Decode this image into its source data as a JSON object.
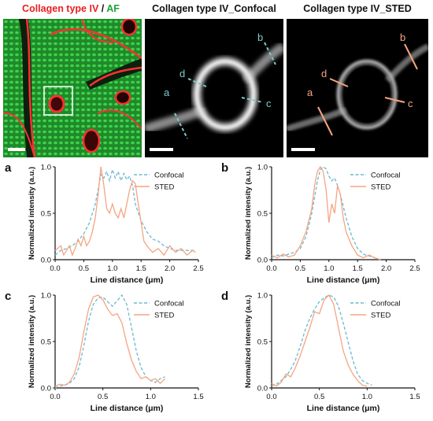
{
  "images": {
    "left_title": {
      "part1": "Collagen type IV",
      "sep": " / ",
      "part2": "AF"
    },
    "confocal_title": "Collagen type IV_Confocal",
    "sted_title": "Collagen type IV_STED",
    "colors": {
      "red": "#ff3030",
      "green": "#22c43a",
      "confocal_line": "#7ec9c9",
      "sted_line": "#f4a582"
    },
    "line_labels": [
      "a",
      "b",
      "c",
      "d"
    ]
  },
  "legend": {
    "confocal": "Confocal",
    "sted": "STED"
  },
  "chart_data": [
    {
      "panel": "a",
      "type": "line",
      "xlabel": "Line distance (μm)",
      "ylabel": "Normalized intensity (a.u.)",
      "xlim": [
        0,
        2.5
      ],
      "ylim": [
        0,
        1.0
      ],
      "xticks": [
        "0.0",
        "0.5",
        "1.0",
        "1.5",
        "2.0",
        "2.5"
      ],
      "yticks": [
        "0.0",
        "0.5",
        "1.0"
      ],
      "series": [
        {
          "name": "Confocal",
          "style": "dashed",
          "color": "#6cb8d0",
          "x": [
            0.0,
            0.1,
            0.2,
            0.3,
            0.4,
            0.5,
            0.6,
            0.7,
            0.75,
            0.8,
            0.85,
            0.9,
            0.95,
            1.0,
            1.05,
            1.1,
            1.15,
            1.2,
            1.25,
            1.3,
            1.35,
            1.4,
            1.5,
            1.6,
            1.7,
            1.8,
            1.9,
            2.0,
            2.1,
            2.2,
            2.3,
            2.4,
            2.45
          ],
          "y": [
            0.05,
            0.1,
            0.12,
            0.15,
            0.2,
            0.28,
            0.4,
            0.6,
            0.75,
            0.92,
            0.88,
            0.95,
            0.85,
            0.97,
            0.88,
            0.95,
            0.85,
            0.93,
            0.86,
            0.9,
            0.8,
            0.6,
            0.42,
            0.3,
            0.22,
            0.2,
            0.15,
            0.12,
            0.1,
            0.1,
            0.1,
            0.1,
            0.1
          ]
        },
        {
          "name": "STED",
          "style": "solid",
          "color": "#f4a582",
          "x": [
            0.0,
            0.1,
            0.15,
            0.2,
            0.25,
            0.3,
            0.35,
            0.4,
            0.45,
            0.5,
            0.55,
            0.6,
            0.65,
            0.7,
            0.75,
            0.8,
            0.85,
            0.9,
            0.95,
            1.0,
            1.05,
            1.1,
            1.15,
            1.2,
            1.25,
            1.3,
            1.35,
            1.4,
            1.45,
            1.5,
            1.55,
            1.6,
            1.7,
            1.8,
            1.9,
            2.0,
            2.1,
            2.2,
            2.3,
            2.4,
            2.45
          ],
          "y": [
            0.1,
            0.15,
            0.05,
            0.1,
            0.15,
            0.05,
            0.12,
            0.22,
            0.15,
            0.25,
            0.15,
            0.2,
            0.3,
            0.45,
            0.7,
            1.0,
            0.8,
            0.55,
            0.5,
            0.6,
            0.5,
            0.45,
            0.55,
            0.45,
            0.6,
            0.75,
            0.85,
            0.82,
            0.6,
            0.4,
            0.2,
            0.15,
            0.08,
            0.12,
            0.05,
            0.15,
            0.08,
            0.12,
            0.05,
            0.1,
            0.08
          ]
        }
      ]
    },
    {
      "panel": "b",
      "type": "line",
      "xlabel": "Line distance (μm)",
      "ylabel": "Normalized intensity (a.u.)",
      "xlim": [
        0,
        2.5
      ],
      "ylim": [
        0,
        1.0
      ],
      "xticks": [
        "0.0",
        "0.5",
        "1.0",
        "1.5",
        "2.0",
        "2.5"
      ],
      "yticks": [
        "0.0",
        "0.5",
        "1.0"
      ],
      "series": [
        {
          "name": "Confocal",
          "style": "dashed",
          "color": "#6cb8d0",
          "x": [
            0.0,
            0.1,
            0.2,
            0.3,
            0.4,
            0.5,
            0.6,
            0.7,
            0.8,
            0.85,
            0.9,
            0.95,
            1.0,
            1.05,
            1.1,
            1.15,
            1.2,
            1.3,
            1.4,
            1.5,
            1.6,
            1.7,
            1.8,
            1.9
          ],
          "y": [
            0.02,
            0.05,
            0.04,
            0.06,
            0.08,
            0.12,
            0.25,
            0.5,
            0.85,
            0.97,
            1.0,
            0.98,
            0.9,
            0.85,
            0.88,
            0.8,
            0.7,
            0.45,
            0.25,
            0.12,
            0.06,
            0.04,
            0.02,
            0.0
          ]
        },
        {
          "name": "STED",
          "style": "solid",
          "color": "#f4a582",
          "x": [
            0.0,
            0.1,
            0.2,
            0.3,
            0.4,
            0.5,
            0.6,
            0.7,
            0.75,
            0.8,
            0.85,
            0.9,
            0.95,
            1.0,
            1.05,
            1.1,
            1.15,
            1.2,
            1.25,
            1.3,
            1.4,
            1.5,
            1.6,
            1.7,
            1.8,
            1.9
          ],
          "y": [
            0.05,
            0.02,
            0.06,
            0.03,
            0.05,
            0.15,
            0.3,
            0.55,
            0.8,
            0.95,
            1.0,
            0.95,
            0.75,
            0.4,
            0.6,
            0.5,
            0.8,
            0.7,
            0.45,
            0.3,
            0.15,
            0.05,
            0.02,
            0.05,
            0.02,
            0.0
          ]
        }
      ]
    },
    {
      "panel": "c",
      "type": "line",
      "xlabel": "Line distance (μm)",
      "ylabel": "Normalized intensity (a.u.)",
      "xlim": [
        0,
        1.5
      ],
      "ylim": [
        0,
        1.0
      ],
      "xticks": [
        "0.0",
        "0.5",
        "1.0",
        "1.5"
      ],
      "yticks": [
        "0.0",
        "0.5",
        "1.0"
      ],
      "series": [
        {
          "name": "Confocal",
          "style": "dashed",
          "color": "#6cb8d0",
          "x": [
            0.0,
            0.05,
            0.1,
            0.15,
            0.2,
            0.25,
            0.3,
            0.35,
            0.4,
            0.45,
            0.5,
            0.55,
            0.6,
            0.65,
            0.7,
            0.75,
            0.8,
            0.85,
            0.9,
            0.95,
            1.0,
            1.05,
            1.1,
            1.15
          ],
          "y": [
            0.0,
            0.02,
            0.03,
            0.05,
            0.1,
            0.22,
            0.45,
            0.72,
            0.9,
            0.97,
            0.98,
            0.93,
            0.88,
            0.94,
            1.0,
            0.9,
            0.65,
            0.4,
            0.22,
            0.12,
            0.08,
            0.06,
            0.1,
            0.12
          ]
        },
        {
          "name": "STED",
          "style": "solid",
          "color": "#f4a582",
          "x": [
            0.0,
            0.05,
            0.1,
            0.15,
            0.2,
            0.25,
            0.3,
            0.35,
            0.4,
            0.45,
            0.5,
            0.55,
            0.6,
            0.65,
            0.7,
            0.75,
            0.8,
            0.85,
            0.9,
            0.95,
            1.0,
            1.05,
            1.1,
            1.15
          ],
          "y": [
            0.02,
            0.04,
            0.03,
            0.06,
            0.15,
            0.32,
            0.6,
            0.85,
            0.98,
            1.0,
            0.95,
            0.85,
            0.78,
            0.8,
            0.7,
            0.48,
            0.3,
            0.18,
            0.1,
            0.12,
            0.08,
            0.1,
            0.05,
            0.1
          ]
        }
      ]
    },
    {
      "panel": "d",
      "type": "line",
      "xlabel": "Line distance (μm)",
      "ylabel": "Normalized intensity (a.u.)",
      "xlim": [
        0,
        1.5
      ],
      "ylim": [
        0,
        1.0
      ],
      "xticks": [
        "0.0",
        "0.5",
        "1.0",
        "1.5"
      ],
      "yticks": [
        "0.0",
        "0.5",
        "1.0"
      ],
      "series": [
        {
          "name": "Confocal",
          "style": "dashed",
          "color": "#6cb8d0",
          "x": [
            0.0,
            0.05,
            0.1,
            0.15,
            0.2,
            0.25,
            0.3,
            0.35,
            0.4,
            0.45,
            0.5,
            0.55,
            0.6,
            0.65,
            0.7,
            0.75,
            0.8,
            0.85,
            0.9,
            0.95,
            1.0,
            1.05
          ],
          "y": [
            0.02,
            0.04,
            0.08,
            0.12,
            0.2,
            0.3,
            0.45,
            0.62,
            0.75,
            0.85,
            0.93,
            0.97,
            1.0,
            0.98,
            0.88,
            0.7,
            0.5,
            0.3,
            0.15,
            0.08,
            0.05,
            0.03
          ]
        },
        {
          "name": "STED",
          "style": "solid",
          "color": "#f4a582",
          "x": [
            0.0,
            0.05,
            0.1,
            0.15,
            0.2,
            0.25,
            0.3,
            0.35,
            0.4,
            0.45,
            0.5,
            0.55,
            0.6,
            0.65,
            0.7,
            0.75,
            0.8,
            0.85,
            0.9,
            0.95,
            1.0
          ],
          "y": [
            0.05,
            0.02,
            0.06,
            0.15,
            0.12,
            0.22,
            0.35,
            0.5,
            0.65,
            0.82,
            0.8,
            0.95,
            1.0,
            0.9,
            0.65,
            0.4,
            0.25,
            0.15,
            0.08,
            0.03,
            0.02
          ]
        }
      ]
    }
  ]
}
